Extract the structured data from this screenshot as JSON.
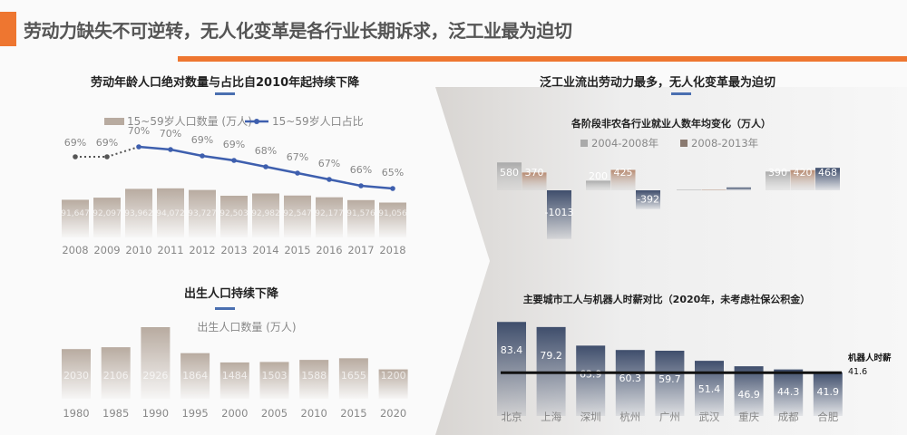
{
  "header": {
    "title": "劳动力缺失不可逆转，无人化变革是各行业长期诉求，泛工业最为迫切"
  },
  "left": {
    "section1_title": "劳动年龄人口绝对数量与占比自2010年起持续下降",
    "section2_title": "出生人口持续下降"
  },
  "right": {
    "section_title": "泛工业流出劳动力最多，无人化变革最为迫切"
  },
  "colors": {
    "accent": "#ee7630",
    "line": "#3e5fae",
    "bar_beige": "#b8aba0",
    "bar_navy": "#4a5a78",
    "bar_copper": "#b88a70"
  },
  "chart_data": [
    {
      "type": "bar+line",
      "legend": [
        "15~59岁人口数量 (万人)",
        "15~59岁人口占比"
      ],
      "legend_position": "top",
      "categories": [
        "2008",
        "2009",
        "2010",
        "2011",
        "2012",
        "2013",
        "2014",
        "2015",
        "2016",
        "2017",
        "2018"
      ],
      "series": [
        {
          "name": "15~59岁人口数量 (万人)",
          "type": "bar",
          "values": [
            91647,
            92097,
            93962,
            94072,
            93727,
            92503,
            92982,
            92547,
            92177,
            91576,
            91056
          ],
          "value_labels": [
            "91,647",
            "92,097",
            "93,962",
            "94,072",
            "93,727",
            "92,503",
            "92,982",
            "92,547",
            "92,177",
            "91,576",
            "91,056"
          ]
        },
        {
          "name": "15~59岁人口占比",
          "type": "line",
          "values": [
            69,
            69,
            70,
            70,
            69,
            69,
            68,
            67,
            67,
            66,
            65
          ],
          "labels": [
            "69%",
            "69%",
            "70%",
            "70%",
            "69%",
            "69%",
            "68%",
            "67%",
            "67%",
            "66%",
            "65%"
          ]
        }
      ]
    },
    {
      "type": "bar",
      "legend": [
        "出生人口数量 (万人)"
      ],
      "categories": [
        "1980",
        "1985",
        "1990",
        "1995",
        "2000",
        "2005",
        "2010",
        "2015",
        "2020"
      ],
      "values": [
        2030,
        2106,
        2926,
        1864,
        1484,
        1503,
        1588,
        1655,
        1200
      ]
    },
    {
      "type": "bar",
      "title": "各阶段非农各行业就业人数年均变化（万人）",
      "legend": [
        "2004-2008年",
        "2008-2013年"
      ],
      "groups": [
        {
          "values": [
            580,
            370,
            -1013
          ],
          "labels": [
            "580",
            "370",
            "-1013"
          ]
        },
        {
          "values": [
            200,
            425,
            -392
          ],
          "labels": [
            "200",
            "425",
            "-392"
          ]
        },
        {
          "values": [
            5,
            5,
            60
          ],
          "labels": [
            "",
            "",
            ""
          ]
        },
        {
          "values": [
            390,
            420,
            468
          ],
          "labels": [
            "390",
            "420",
            "468"
          ]
        }
      ]
    },
    {
      "type": "bar",
      "title": "主要城市工人与机器人时薪对比（2020年，未考虑社保公积金）",
      "categories": [
        "北京",
        "上海",
        "深圳",
        "杭州",
        "广州",
        "武汉",
        "重庆",
        "成都",
        "合肥"
      ],
      "values": [
        83.4,
        79.2,
        63.9,
        60.3,
        59.7,
        51.4,
        46.9,
        44.3,
        41.9
      ],
      "value_labels": [
        "83.4",
        "79.2",
        "63.9",
        "60.3",
        "59.7",
        "51.4",
        "46.9",
        "44.3",
        "41.9"
      ],
      "reference": {
        "label": "机器人时薪",
        "value": 41.6,
        "value_label": "41.6"
      }
    }
  ]
}
